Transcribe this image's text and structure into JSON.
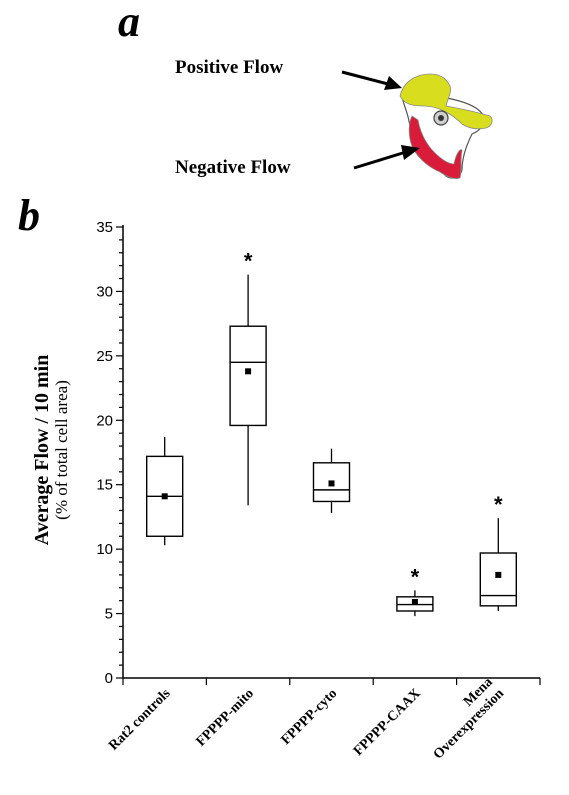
{
  "panel_a": {
    "letter": "a",
    "positive_label": "Positive Flow",
    "negative_label": "Negative Flow",
    "colors": {
      "positive": "#d8de1e",
      "negative": "#d91c3a",
      "cell": "#ffffff"
    }
  },
  "panel_b": {
    "letter": "b"
  },
  "chart_data": {
    "type": "box",
    "ylabel": "Average Flow / 10 min",
    "ylabel_sub": "(% of total cell area)",
    "ylim": [
      0,
      35
    ],
    "yticks": [
      0,
      5,
      10,
      15,
      20,
      25,
      30,
      35
    ],
    "ytick_labels": [
      "0",
      "5",
      "10",
      "15",
      "20",
      "25",
      "30",
      "35"
    ],
    "categories": [
      "Rat2 controls",
      "FPPPP-mito",
      "FPPPP-cyto",
      "FPPPP-CAAX",
      "Mena\nOverexpression"
    ],
    "boxes": [
      {
        "whisker_low": 10.3,
        "q1": 11.0,
        "median": 14.1,
        "q3": 17.2,
        "whisker_high": 18.7,
        "mean": 14.1,
        "significant": false
      },
      {
        "whisker_low": 13.4,
        "q1": 19.6,
        "median": 24.5,
        "q3": 27.3,
        "whisker_high": 31.3,
        "mean": 23.8,
        "significant": true
      },
      {
        "whisker_low": 12.8,
        "q1": 13.7,
        "median": 14.6,
        "q3": 16.7,
        "whisker_high": 17.8,
        "mean": 15.1,
        "significant": false
      },
      {
        "whisker_low": 4.8,
        "q1": 5.2,
        "median": 5.7,
        "q3": 6.3,
        "whisker_high": 6.8,
        "mean": 5.9,
        "significant": true
      },
      {
        "whisker_low": 5.2,
        "q1": 5.6,
        "median": 6.4,
        "q3": 9.7,
        "whisker_high": 12.4,
        "mean": 8.0,
        "significant": true
      }
    ],
    "significance_marker": "*",
    "grid": false,
    "legend": "none"
  }
}
